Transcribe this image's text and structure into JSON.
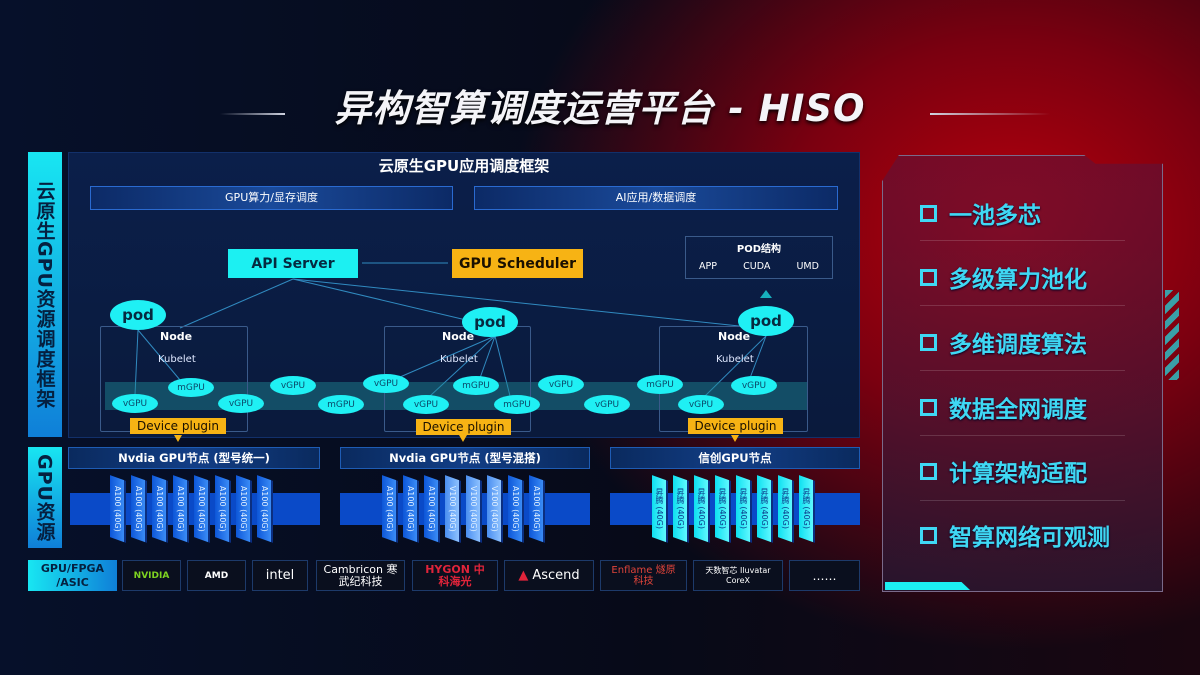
{
  "title": "异构智算调度运营平台 - HISO",
  "left_labels": {
    "framework": "云原生GPU资源调度框架",
    "resources": "GPU资源"
  },
  "framework": {
    "header": "云原生GPU应用调度框架",
    "bar_left": "GPU算力/显存调度",
    "bar_right": "AI应用/数据调度",
    "api_server": "API Server",
    "gpu_scheduler": "GPU Scheduler",
    "pod_structure": {
      "title": "POD结构",
      "items": [
        "APP",
        "CUDA",
        "UMD"
      ]
    },
    "pod_label": "pod",
    "node_label": "Node",
    "kubelet_label": "Kubelet",
    "device_plugin": "Device plugin",
    "gpu_ellipses": [
      "vGPU",
      "mGPU",
      "vGPU",
      "vGPU",
      "mGPU",
      "vGPU",
      "vGPU",
      "mGPU",
      "mGPU",
      "vGPU",
      "vGPU",
      "mGPU",
      "vGPU",
      "vGPU"
    ]
  },
  "gpu_nodes": [
    {
      "title": "Nvdia GPU节点 (型号统一)",
      "cards": [
        "A100 (40G)",
        "A100 (40G)",
        "A100 (40G)",
        "A100 (40G)",
        "A100 (40G)",
        "A100 (40G)",
        "A100 (40G)",
        "A100 (40G)"
      ]
    },
    {
      "title": "Nvdia GPU节点 (型号混搭)",
      "cards": [
        "A100 (40G)",
        "A100 (40G)",
        "A100 (40G)",
        "V100 (40G)",
        "V100 (40G)",
        "V100 (40G)",
        "A100 (40G)",
        "A100 (40G)"
      ]
    },
    {
      "title": "信创GPU节点",
      "cards": [
        "昇腾 (40G)",
        "昇腾 (40G)",
        "昇腾 (40G)",
        "昇腾 (40G)",
        "昇腾 (40G)",
        "昇腾 (40G)",
        "昇腾 (40G)",
        "昇腾 (40G)"
      ]
    }
  ],
  "vendor_row": {
    "label": "GPU/FPGA /ASIC",
    "vendors": [
      "NVIDIA",
      "AMD",
      "intel",
      "Cambricon 寒武纪科技",
      "HYGON 中科海光",
      "Ascend",
      "Enflame 燧原科技",
      "天数智芯 Iluvatar CoreX",
      "……"
    ]
  },
  "features": [
    "一池多芯",
    "多级算力池化",
    "多维调度算法",
    "数据全网调度",
    "计算架构适配",
    "智算网络可观测"
  ],
  "colors": {
    "cyan": "#1cf0f2",
    "orange": "#f7b314",
    "feature_text": "#3fd8f4",
    "card_blue": "#0d56d8"
  }
}
